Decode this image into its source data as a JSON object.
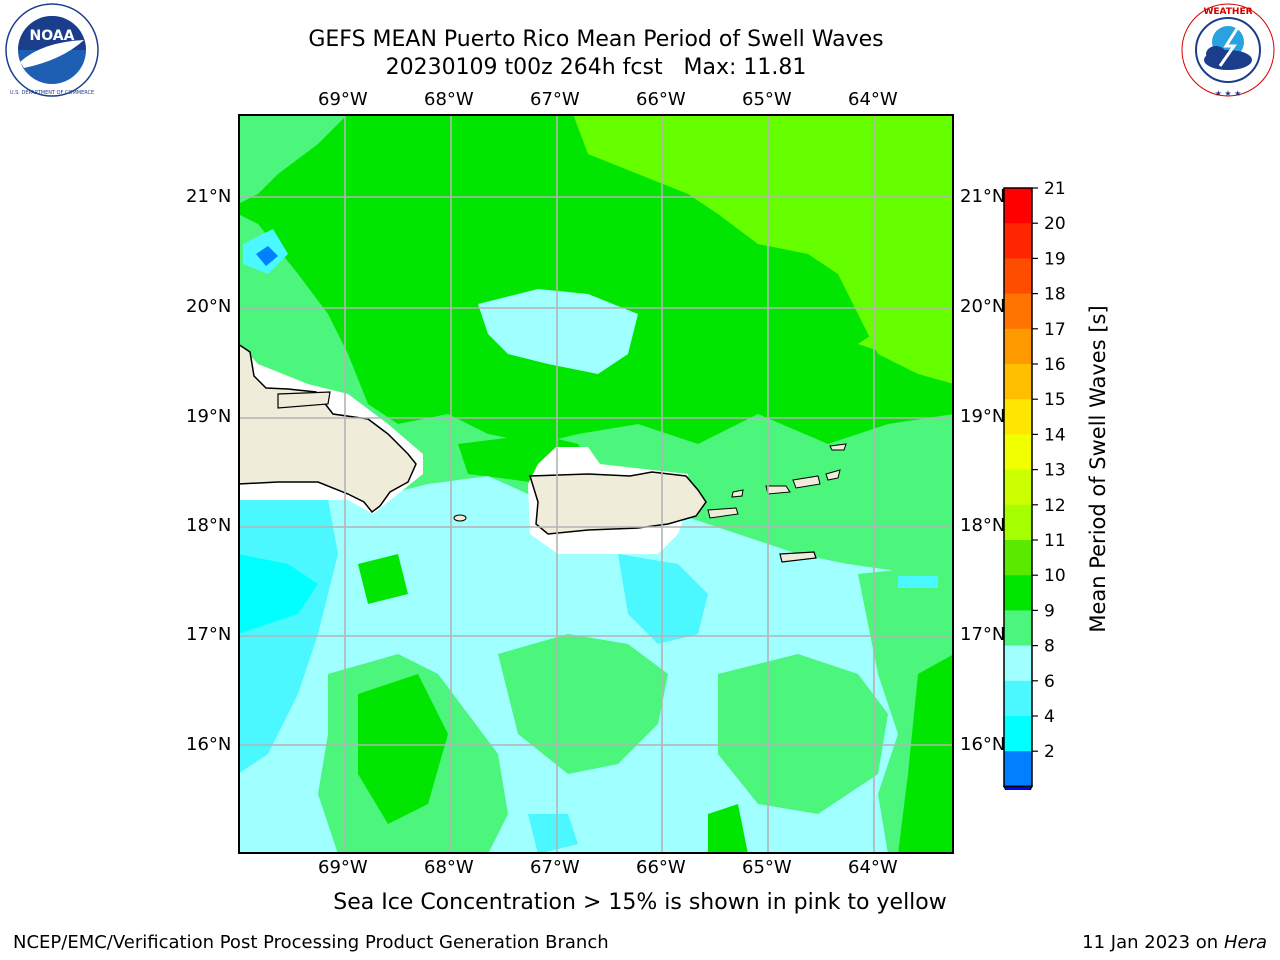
{
  "header": {
    "title_line1": "GEFS MEAN Puerto Rico Mean Period of Swell Waves",
    "title_line2": "20230109 t00z 264h fcst   Max: 11.81"
  },
  "logos": {
    "left": {
      "name": "noaa-logo",
      "text": "NOAA",
      "ring_text": "NATIONAL OCEANIC AND ATMOSPHERIC ADMINISTRATION • U.S. DEPARTMENT OF COMMERCE"
    },
    "right": {
      "name": "nws-logo",
      "ring_text": "NATIONAL WEATHER SERVICE"
    }
  },
  "map": {
    "lon_labels": [
      "69°W",
      "68°W",
      "67°W",
      "66°W",
      "65°W",
      "64°W"
    ],
    "lat_labels": [
      "21°N",
      "20°N",
      "19°N",
      "18°N",
      "17°N",
      "16°N"
    ],
    "lat_labels_right": [
      "21°N",
      "20°N",
      "19°N",
      "18°N",
      "17°N",
      "16°N"
    ],
    "colors": {
      "land": "#efecda",
      "open_water_green": "#00e600",
      "light_green": "#4cf57c",
      "pale_cyan": "#a0ffff",
      "cyan": "#4cf8ff",
      "bright_cyan": "#00ffff",
      "lime": "#66ff00",
      "grid": "#b4b4b4"
    }
  },
  "colorbar": {
    "label": "Mean Period of Swell Waves [s]",
    "ticks": [
      "21",
      "20",
      "19",
      "18",
      "17",
      "16",
      "15",
      "14",
      "13",
      "12",
      "11",
      "10",
      "9",
      "8",
      "6",
      "4",
      "2"
    ],
    "colors": [
      "#ff0000",
      "#ff2600",
      "#ff4d00",
      "#ff7300",
      "#ff9900",
      "#ffbf00",
      "#ffe600",
      "#f2ff00",
      "#ccff00",
      "#a6ff00",
      "#59ea00",
      "#00e600",
      "#4cf57c",
      "#a0ffff",
      "#4cf8ff",
      "#00ffff",
      "#0080ff",
      "#0000ff"
    ]
  },
  "footer": {
    "note": "Sea Ice Concentration > 15% is shown in pink to yellow",
    "org": "NCEP/EMC/Verification Post Processing Product Generation Branch",
    "date_prefix": "11 Jan 2023 on ",
    "machine": "Hera"
  }
}
